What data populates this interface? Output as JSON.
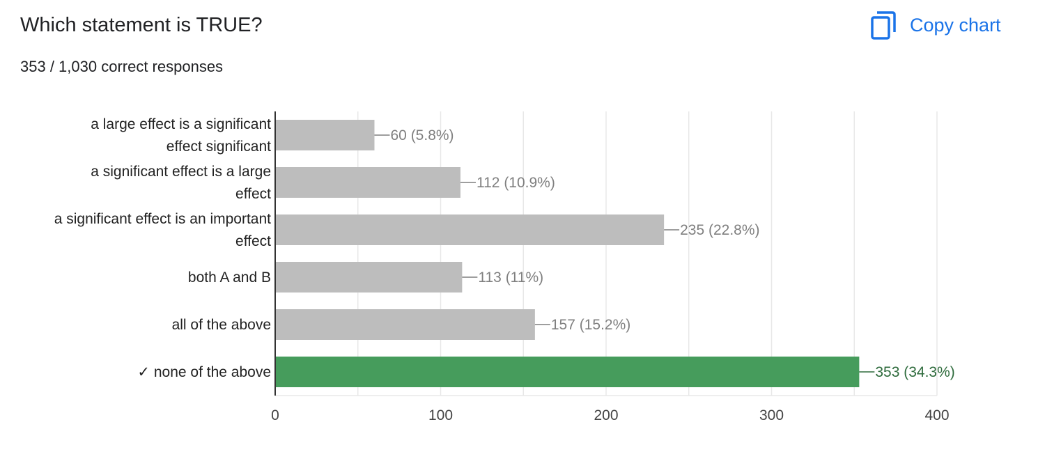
{
  "question": {
    "title": "Which statement is TRUE?",
    "summary": "353 / 1,030 correct responses"
  },
  "toolbar": {
    "copy_label": "Copy chart",
    "copy_icon": "copy-icon",
    "accent_color": "#1a73e8"
  },
  "chart_data": {
    "type": "bar",
    "orientation": "horizontal",
    "categories": [
      [
        "a large effect is a significant",
        "effect significant"
      ],
      [
        "a significant effect is a large",
        "effect"
      ],
      [
        "a significant effect is an important",
        "effect"
      ],
      [
        "both A and B"
      ],
      [
        "all of the above"
      ],
      [
        "✓ none of the above"
      ]
    ],
    "values": [
      60,
      112,
      235,
      113,
      157,
      353
    ],
    "data_labels": [
      "60 (5.8%)",
      "112 (10.9%)",
      "235 (22.8%)",
      "113 (11%)",
      "157 (15.2%)",
      "353 (34.3%)"
    ],
    "correct_index": 5,
    "xlim": [
      0,
      400
    ],
    "ticks": [
      0,
      100,
      200,
      300,
      400
    ],
    "grid": true,
    "colors": {
      "bar": "#bdbdbd",
      "correct_bar": "#469c5c",
      "label": "#7f7f7f",
      "correct_label": "#2e6b3c",
      "grid": "#e8e8e8",
      "axis": "#333333"
    }
  }
}
